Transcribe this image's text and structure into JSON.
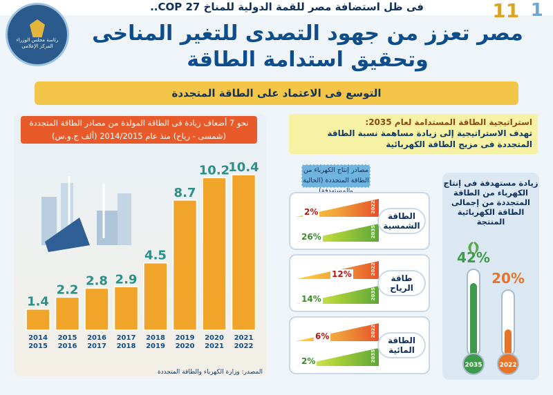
{
  "header": {
    "top_line": "فى ظل استضافة مصر للقمة الدولية للمناخ COP 27..",
    "emblem_lines": [
      "رئاسة مجلس الوزراء",
      "المركز الإعلامى"
    ],
    "logo_numbers": [
      "11",
      "1"
    ]
  },
  "title_lines": [
    "مصر تعزز من جهود التصدى للتغير المناخى",
    "وتحقيق استدامة الطاقة"
  ],
  "subtitle": "التوسع فى الاعتماد على الطاقة المتجددة",
  "source": "المصدر: وزارة الكهرباء والطاقة المتجددة",
  "strategy": {
    "heading": "استراتيجية الطاقة المستدامة لعام 2035:",
    "body": "تهدف الاستراتيجية إلى زيادة مساهمة نسبة الطاقة المتجددة فى مزيج الطاقة الكهربائية"
  },
  "mix": {
    "heading": "مصادر إنتاج الكهرباء من الطاقة المتجددة (الحالية والمستهدفة)",
    "cards": [
      {
        "label": "الطاقة الشمسية",
        "current_year": "2022",
        "current": 2,
        "current_label": "2%",
        "target_year": "2035",
        "target": 26,
        "target_label": "26%"
      },
      {
        "label": "طاقة الرياح",
        "current_year": "2022",
        "current": 12,
        "current_label": "12%",
        "target_year": "2035",
        "target": 14,
        "target_label": "14%"
      },
      {
        "label": "الطاقة المائية",
        "current_year": "2022",
        "current": 6,
        "current_label": "6%",
        "target_year": "2035",
        "target": 2,
        "target_label": "2%"
      }
    ]
  },
  "target": {
    "text": "زيادة مستهدفة فى إنتاج الكهرباء من الطاقة المتجددة من إجمالى الطاقة الكهربائية المنتجة",
    "items": [
      {
        "year": "2035",
        "value": 42,
        "label": "42%",
        "color": "#3e9a4b"
      },
      {
        "year": "2022",
        "value": 20,
        "label": "20%",
        "color": "#e8742a"
      }
    ]
  },
  "chart_data": {
    "type": "bar",
    "title": "نحو 7 أضعاف زيادة فى الطاقة المولدة من مصادر الطاقة المتجددة (شمسى - رياح) منذ عام 2014/2015 (ألف ج.و.س)",
    "categories": [
      [
        "2014",
        "2015"
      ],
      [
        "2015",
        "2016"
      ],
      [
        "2016",
        "2017"
      ],
      [
        "2017",
        "2018"
      ],
      [
        "2018",
        "2019"
      ],
      [
        "2019",
        "2020"
      ],
      [
        "2020",
        "2021"
      ],
      [
        "2021",
        "2022"
      ]
    ],
    "values": [
      1.4,
      2.2,
      2.8,
      2.9,
      4.5,
      8.7,
      10.2,
      10.4
    ],
    "value_labels": [
      "1.4",
      "2.2",
      "2.8",
      "2.9",
      "4.5",
      "8.7",
      "10.2",
      "10.4"
    ],
    "ylim": [
      0,
      11
    ],
    "bar_color": "#f0a42a",
    "label_color": "#2b8f8a"
  }
}
